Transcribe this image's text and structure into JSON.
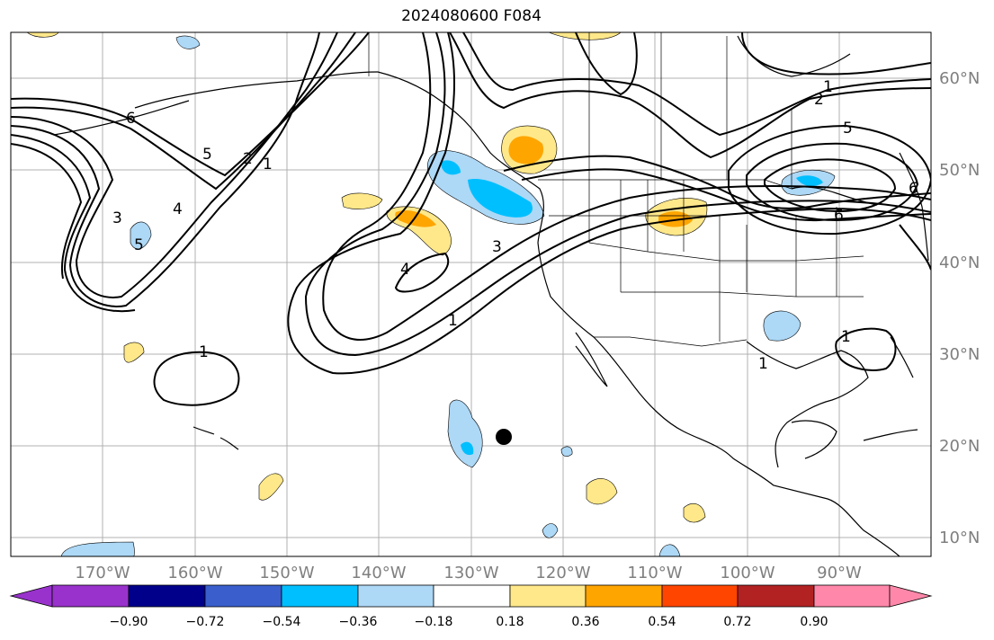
{
  "title": "2024080600 F084",
  "map": {
    "lon_labels": [
      "170°W",
      "160°W",
      "150°W",
      "140°W",
      "130°W",
      "120°W",
      "110°W",
      "100°W",
      "90°W"
    ],
    "lat_labels": [
      "60°N",
      "50°N",
      "40°N",
      "30°N",
      "20°N",
      "10°N"
    ],
    "contour_labels": [
      "1",
      "2",
      "5",
      "6",
      "5",
      "2",
      "1",
      "3",
      "4",
      "5",
      "6",
      "3",
      "4",
      "1",
      "1",
      "1",
      "1",
      "6"
    ],
    "marker": "storm-position",
    "land_color": "#ffffff",
    "grid_color": "#b0b0b0"
  },
  "colorbar": {
    "colors": [
      "#9932cc",
      "#00008b",
      "#3a5fcd",
      "#00bfff",
      "#add8f6",
      "#ffffff",
      "#ffe88a",
      "#ffa500",
      "#ff4500",
      "#b22222",
      "#ff88aa"
    ],
    "tick_labels": [
      "−0.90",
      "−0.72",
      "−0.54",
      "−0.36",
      "−0.18",
      "0.18",
      "0.36",
      "0.54",
      "0.72",
      "0.90"
    ]
  }
}
